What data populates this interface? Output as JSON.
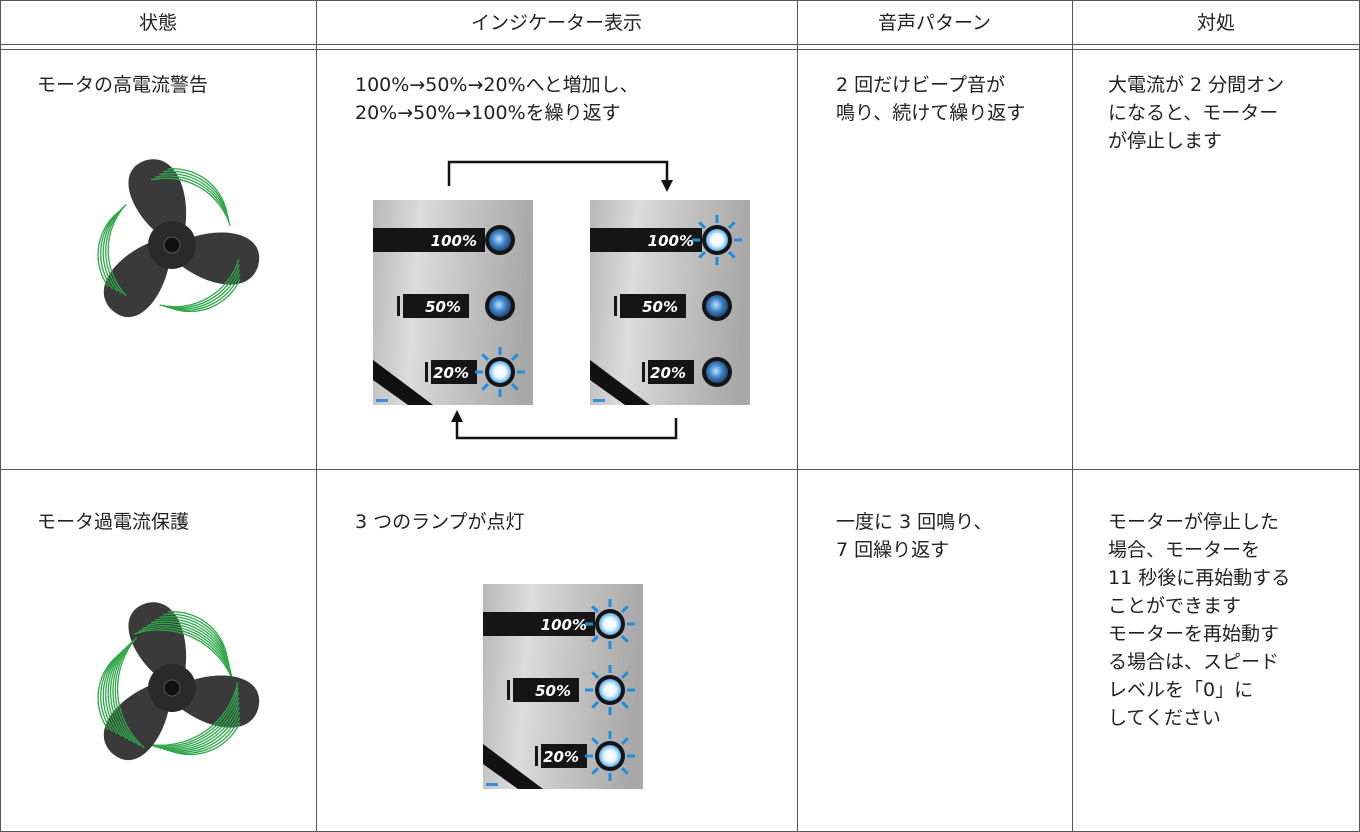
{
  "table": {
    "headers": [
      "状態",
      "インジケーター表示",
      "音声パターン",
      "対処"
    ],
    "rows": [
      {
        "state": "モータの高電流警告",
        "indicator": [
          "100%→50%→20%へと増加し、",
          "20%→50%→100%を繰り返す"
        ],
        "sound": [
          "2 回だけビープ音が",
          "鳴り、続けて繰り返す"
        ],
        "action": [
          "大電流が 2 分間オン",
          "になると、モーター",
          "が停止します"
        ],
        "panels": [
          {
            "labels": [
              "100%",
              "50%",
              "20%"
            ]
          },
          {
            "labels": [
              "100%",
              "50%",
              "20%"
            ]
          }
        ]
      },
      {
        "state": "モータ過電流保護",
        "indicator": [
          "3 つのランプが点灯"
        ],
        "sound": [
          "一度に 3 回鳴り、",
          "7 回繰り返す"
        ],
        "action": [
          "モーターが停止した",
          "場合、モーターを",
          "11 秒後に再始動する",
          "ことができます",
          "モーターを再始動す",
          "る場合は、スピード",
          "レベルを「0」に",
          "してください"
        ],
        "panels": [
          {
            "labels": [
              "100%",
              "50%",
              "20%"
            ]
          }
        ]
      }
    ]
  }
}
